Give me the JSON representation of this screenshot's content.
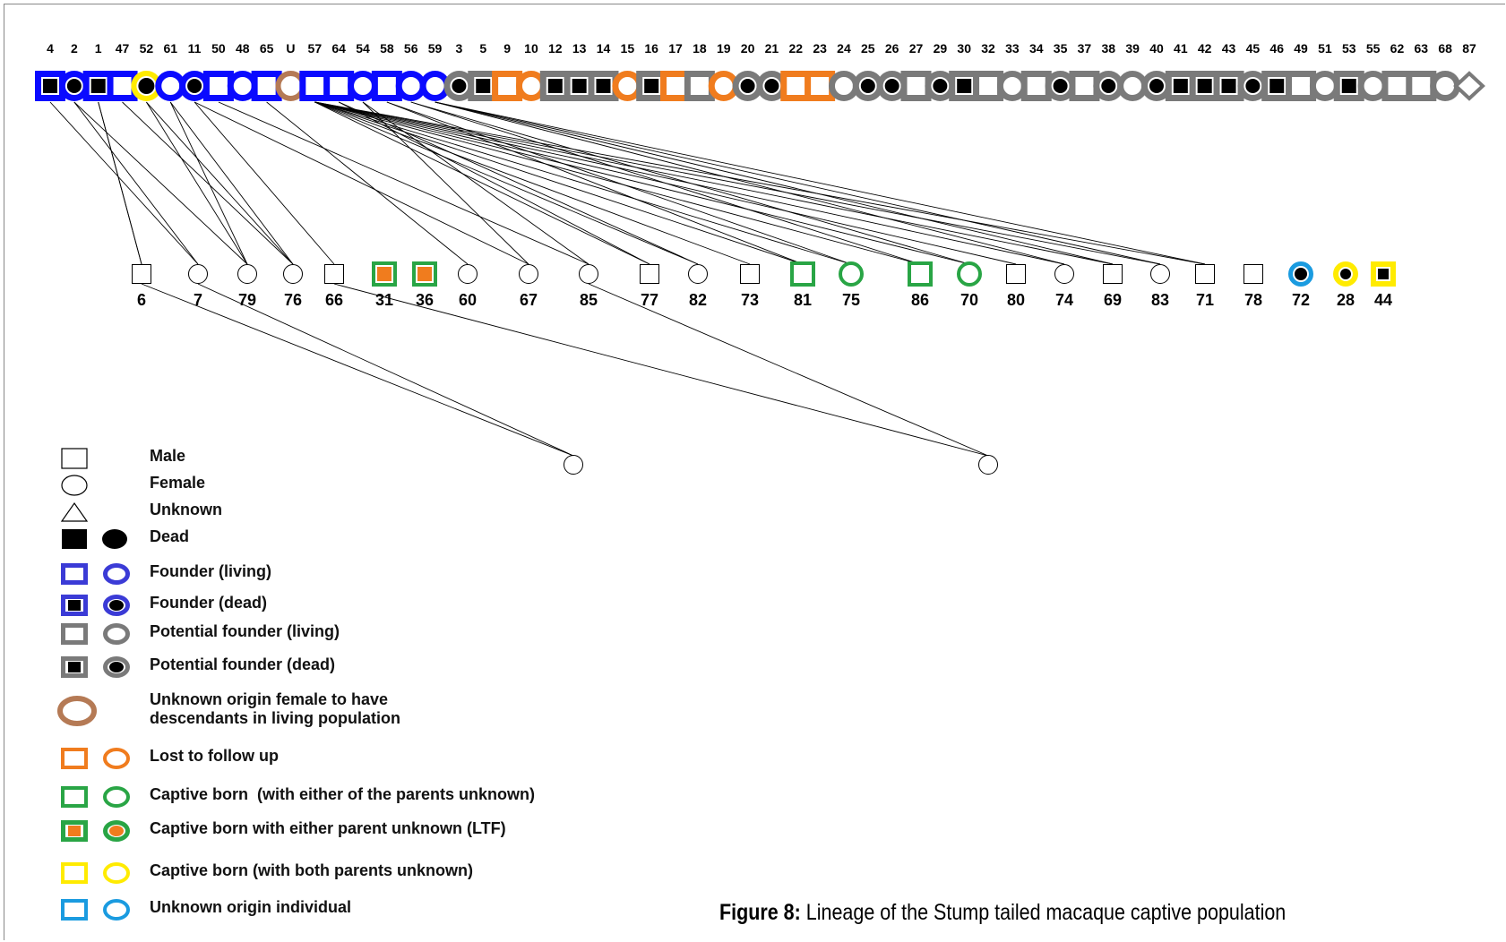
{
  "top_ids": [
    "4",
    "2",
    "1",
    "47",
    "52",
    "61",
    "11",
    "50",
    "48",
    "65",
    "U",
    "57",
    "64",
    "54",
    "58",
    "56",
    "59",
    "3",
    "5",
    "9",
    "10",
    "12",
    "13",
    "14",
    "15",
    "16",
    "17",
    "18",
    "19",
    "20",
    "21",
    "22",
    "23",
    "24",
    "25",
    "26",
    "27",
    "29",
    "30",
    "32",
    "33",
    "34",
    "35",
    "37",
    "38",
    "39",
    "40",
    "41",
    "42",
    "43",
    "45",
    "46",
    "49",
    "51",
    "53",
    "55",
    "62",
    "63",
    "68",
    "87"
  ],
  "top_row": [
    {
      "sex": "m",
      "cat": "founder_dead"
    },
    {
      "sex": "f",
      "cat": "founder_dead"
    },
    {
      "sex": "m",
      "cat": "founder_dead"
    },
    {
      "sex": "m",
      "cat": "founder_living"
    },
    {
      "sex": "f",
      "cat": "captive_both_unknown_dead"
    },
    {
      "sex": "f",
      "cat": "founder_living"
    },
    {
      "sex": "f",
      "cat": "founder_dead"
    },
    {
      "sex": "m",
      "cat": "founder_living"
    },
    {
      "sex": "f",
      "cat": "founder_living"
    },
    {
      "sex": "m",
      "cat": "founder_living"
    },
    {
      "sex": "f",
      "cat": "unknown_origin_female"
    },
    {
      "sex": "m",
      "cat": "founder_living"
    },
    {
      "sex": "m",
      "cat": "founder_living"
    },
    {
      "sex": "f",
      "cat": "founder_living"
    },
    {
      "sex": "m",
      "cat": "founder_living"
    },
    {
      "sex": "f",
      "cat": "founder_living"
    },
    {
      "sex": "f",
      "cat": "founder_living"
    },
    {
      "sex": "f",
      "cat": "potential_dead"
    },
    {
      "sex": "m",
      "cat": "potential_dead"
    },
    {
      "sex": "m",
      "cat": "lost_follow_up"
    },
    {
      "sex": "f",
      "cat": "lost_follow_up"
    },
    {
      "sex": "m",
      "cat": "potential_dead"
    },
    {
      "sex": "m",
      "cat": "potential_dead"
    },
    {
      "sex": "m",
      "cat": "potential_dead"
    },
    {
      "sex": "f",
      "cat": "lost_follow_up"
    },
    {
      "sex": "m",
      "cat": "potential_dead"
    },
    {
      "sex": "m",
      "cat": "lost_follow_up"
    },
    {
      "sex": "m",
      "cat": "potential_living"
    },
    {
      "sex": "f",
      "cat": "lost_follow_up"
    },
    {
      "sex": "f",
      "cat": "potential_dead"
    },
    {
      "sex": "f",
      "cat": "potential_dead"
    },
    {
      "sex": "m",
      "cat": "lost_follow_up"
    },
    {
      "sex": "m",
      "cat": "lost_follow_up"
    },
    {
      "sex": "f",
      "cat": "potential_living"
    },
    {
      "sex": "f",
      "cat": "potential_dead"
    },
    {
      "sex": "f",
      "cat": "potential_dead"
    },
    {
      "sex": "m",
      "cat": "potential_living"
    },
    {
      "sex": "f",
      "cat": "potential_dead"
    },
    {
      "sex": "m",
      "cat": "potential_dead"
    },
    {
      "sex": "m",
      "cat": "potential_living"
    },
    {
      "sex": "f",
      "cat": "potential_living"
    },
    {
      "sex": "m",
      "cat": "potential_living"
    },
    {
      "sex": "f",
      "cat": "potential_dead"
    },
    {
      "sex": "m",
      "cat": "potential_living"
    },
    {
      "sex": "f",
      "cat": "potential_dead"
    },
    {
      "sex": "f",
      "cat": "potential_living"
    },
    {
      "sex": "f",
      "cat": "potential_dead"
    },
    {
      "sex": "m",
      "cat": "potential_dead"
    },
    {
      "sex": "m",
      "cat": "potential_dead"
    },
    {
      "sex": "m",
      "cat": "potential_dead"
    },
    {
      "sex": "f",
      "cat": "potential_dead"
    },
    {
      "sex": "m",
      "cat": "potential_dead"
    },
    {
      "sex": "m",
      "cat": "potential_living"
    },
    {
      "sex": "f",
      "cat": "potential_living"
    },
    {
      "sex": "m",
      "cat": "potential_dead"
    },
    {
      "sex": "f",
      "cat": "potential_living"
    },
    {
      "sex": "m",
      "cat": "potential_living"
    },
    {
      "sex": "m",
      "cat": "potential_living"
    },
    {
      "sex": "f",
      "cat": "potential_living"
    },
    {
      "sex": "u",
      "cat": "potential_living"
    }
  ],
  "mid_row": [
    {
      "id": "6",
      "sex": "m",
      "cat": "plain"
    },
    {
      "id": "7",
      "sex": "f",
      "cat": "plain"
    },
    {
      "id": "79",
      "sex": "f",
      "cat": "plain"
    },
    {
      "id": "76",
      "sex": "f",
      "cat": "plain"
    },
    {
      "id": "66",
      "sex": "m",
      "cat": "plain"
    },
    {
      "id": "31",
      "sex": "m",
      "cat": "captive_ltf"
    },
    {
      "id": "36",
      "sex": "m",
      "cat": "captive_ltf"
    },
    {
      "id": "60",
      "sex": "f",
      "cat": "plain"
    },
    {
      "id": "67",
      "sex": "f",
      "cat": "plain"
    },
    {
      "id": "85",
      "sex": "f",
      "cat": "plain"
    },
    {
      "id": "77",
      "sex": "m",
      "cat": "plain"
    },
    {
      "id": "82",
      "sex": "f",
      "cat": "plain"
    },
    {
      "id": "73",
      "sex": "m",
      "cat": "plain"
    },
    {
      "id": "81",
      "sex": "m",
      "cat": "captive_one_unknown"
    },
    {
      "id": "75",
      "sex": "f",
      "cat": "captive_one_unknown"
    },
    {
      "id": "86",
      "sex": "m",
      "cat": "captive_one_unknown"
    },
    {
      "id": "70",
      "sex": "f",
      "cat": "captive_one_unknown"
    },
    {
      "id": "80",
      "sex": "m",
      "cat": "plain"
    },
    {
      "id": "74",
      "sex": "f",
      "cat": "plain"
    },
    {
      "id": "69",
      "sex": "m",
      "cat": "plain"
    },
    {
      "id": "83",
      "sex": "f",
      "cat": "plain"
    },
    {
      "id": "71",
      "sex": "m",
      "cat": "plain"
    },
    {
      "id": "78",
      "sex": "m",
      "cat": "plain"
    },
    {
      "id": "72",
      "sex": "f",
      "cat": "unknown_origin_dead"
    },
    {
      "id": "28",
      "sex": "f",
      "cat": "captive_both_unknown_dead"
    },
    {
      "id": "44",
      "sex": "m",
      "cat": "captive_both_unknown_dead"
    }
  ],
  "bottom_row": [
    {
      "sex": "f",
      "cat": "plain"
    },
    {
      "sex": "f",
      "cat": "plain"
    }
  ],
  "parent_links": [
    [
      "4",
      "7"
    ],
    [
      "2",
      "7"
    ],
    [
      "2",
      "79"
    ],
    [
      "1",
      "6"
    ],
    [
      "1",
      "6"
    ],
    [
      "52",
      "79"
    ],
    [
      "52",
      "76"
    ],
    [
      "47",
      "76"
    ],
    [
      "61",
      "79"
    ],
    [
      "61",
      "76"
    ],
    [
      "11",
      "66"
    ],
    [
      "11",
      "67"
    ],
    [
      "50",
      "85"
    ],
    [
      "65",
      "60"
    ],
    [
      "57",
      "77"
    ],
    [
      "57",
      "82"
    ],
    [
      "57",
      "73"
    ],
    [
      "57",
      "81"
    ],
    [
      "57",
      "75"
    ],
    [
      "57",
      "86"
    ],
    [
      "57",
      "70"
    ],
    [
      "57",
      "80"
    ],
    [
      "57",
      "74"
    ],
    [
      "57",
      "69"
    ],
    [
      "57",
      "83"
    ],
    [
      "57",
      "71"
    ],
    [
      "64",
      "77"
    ],
    [
      "64",
      "82"
    ],
    [
      "54",
      "67"
    ],
    [
      "54",
      "85"
    ],
    [
      "58",
      "81"
    ],
    [
      "58",
      "75"
    ],
    [
      "56",
      "86"
    ],
    [
      "56",
      "70"
    ],
    [
      "59",
      "74"
    ],
    [
      "59",
      "69"
    ],
    [
      "59",
      "83"
    ],
    [
      "59",
      "71"
    ]
  ],
  "child_links": [
    [
      "7",
      "b1"
    ],
    [
      "6",
      "b1"
    ],
    [
      "66",
      "b2"
    ],
    [
      "85",
      "b2"
    ]
  ],
  "legend": [
    {
      "label": "Male",
      "kind": "sym_male"
    },
    {
      "label": "Female",
      "kind": "sym_female"
    },
    {
      "label": "Unknown",
      "kind": "sym_unknown"
    },
    {
      "label": "Dead",
      "kind": "dead"
    },
    {
      "label": "Founder (living)",
      "kind": "founder_living"
    },
    {
      "label": "Founder (dead)",
      "kind": "founder_dead"
    },
    {
      "label": "Potential founder (living)",
      "kind": "potential_living"
    },
    {
      "label": "Potential founder (dead)",
      "kind": "potential_dead"
    },
    {
      "label": "Unknown origin female to have\ndescendants in living population",
      "kind": "unknown_origin_female"
    },
    {
      "label": "Lost to follow up",
      "kind": "lost_follow_up"
    },
    {
      "label": "Captive born  (with either of the parents unknown)",
      "kind": "captive_one_unknown"
    },
    {
      "label": "Captive born with either parent unknown (LTF)",
      "kind": "captive_ltf"
    },
    {
      "label": "Captive born (with both parents unknown)",
      "kind": "captive_both_unknown"
    },
    {
      "label": "Unknown origin individual",
      "kind": "unknown_origin"
    }
  ],
  "colors": {
    "founder_blue": "#0a0aff",
    "founder_blue_light": "#3b3bd6",
    "grey": "#7a7a7a",
    "orange": "#f07c1e",
    "green": "#29a545",
    "yellow": "#ffeb00",
    "brown": "#b57a55",
    "cyan": "#1a9be0"
  },
  "caption": {
    "bold": "Figure 8:",
    "text": " Lineage of the Stump tailed macaque captive population"
  }
}
